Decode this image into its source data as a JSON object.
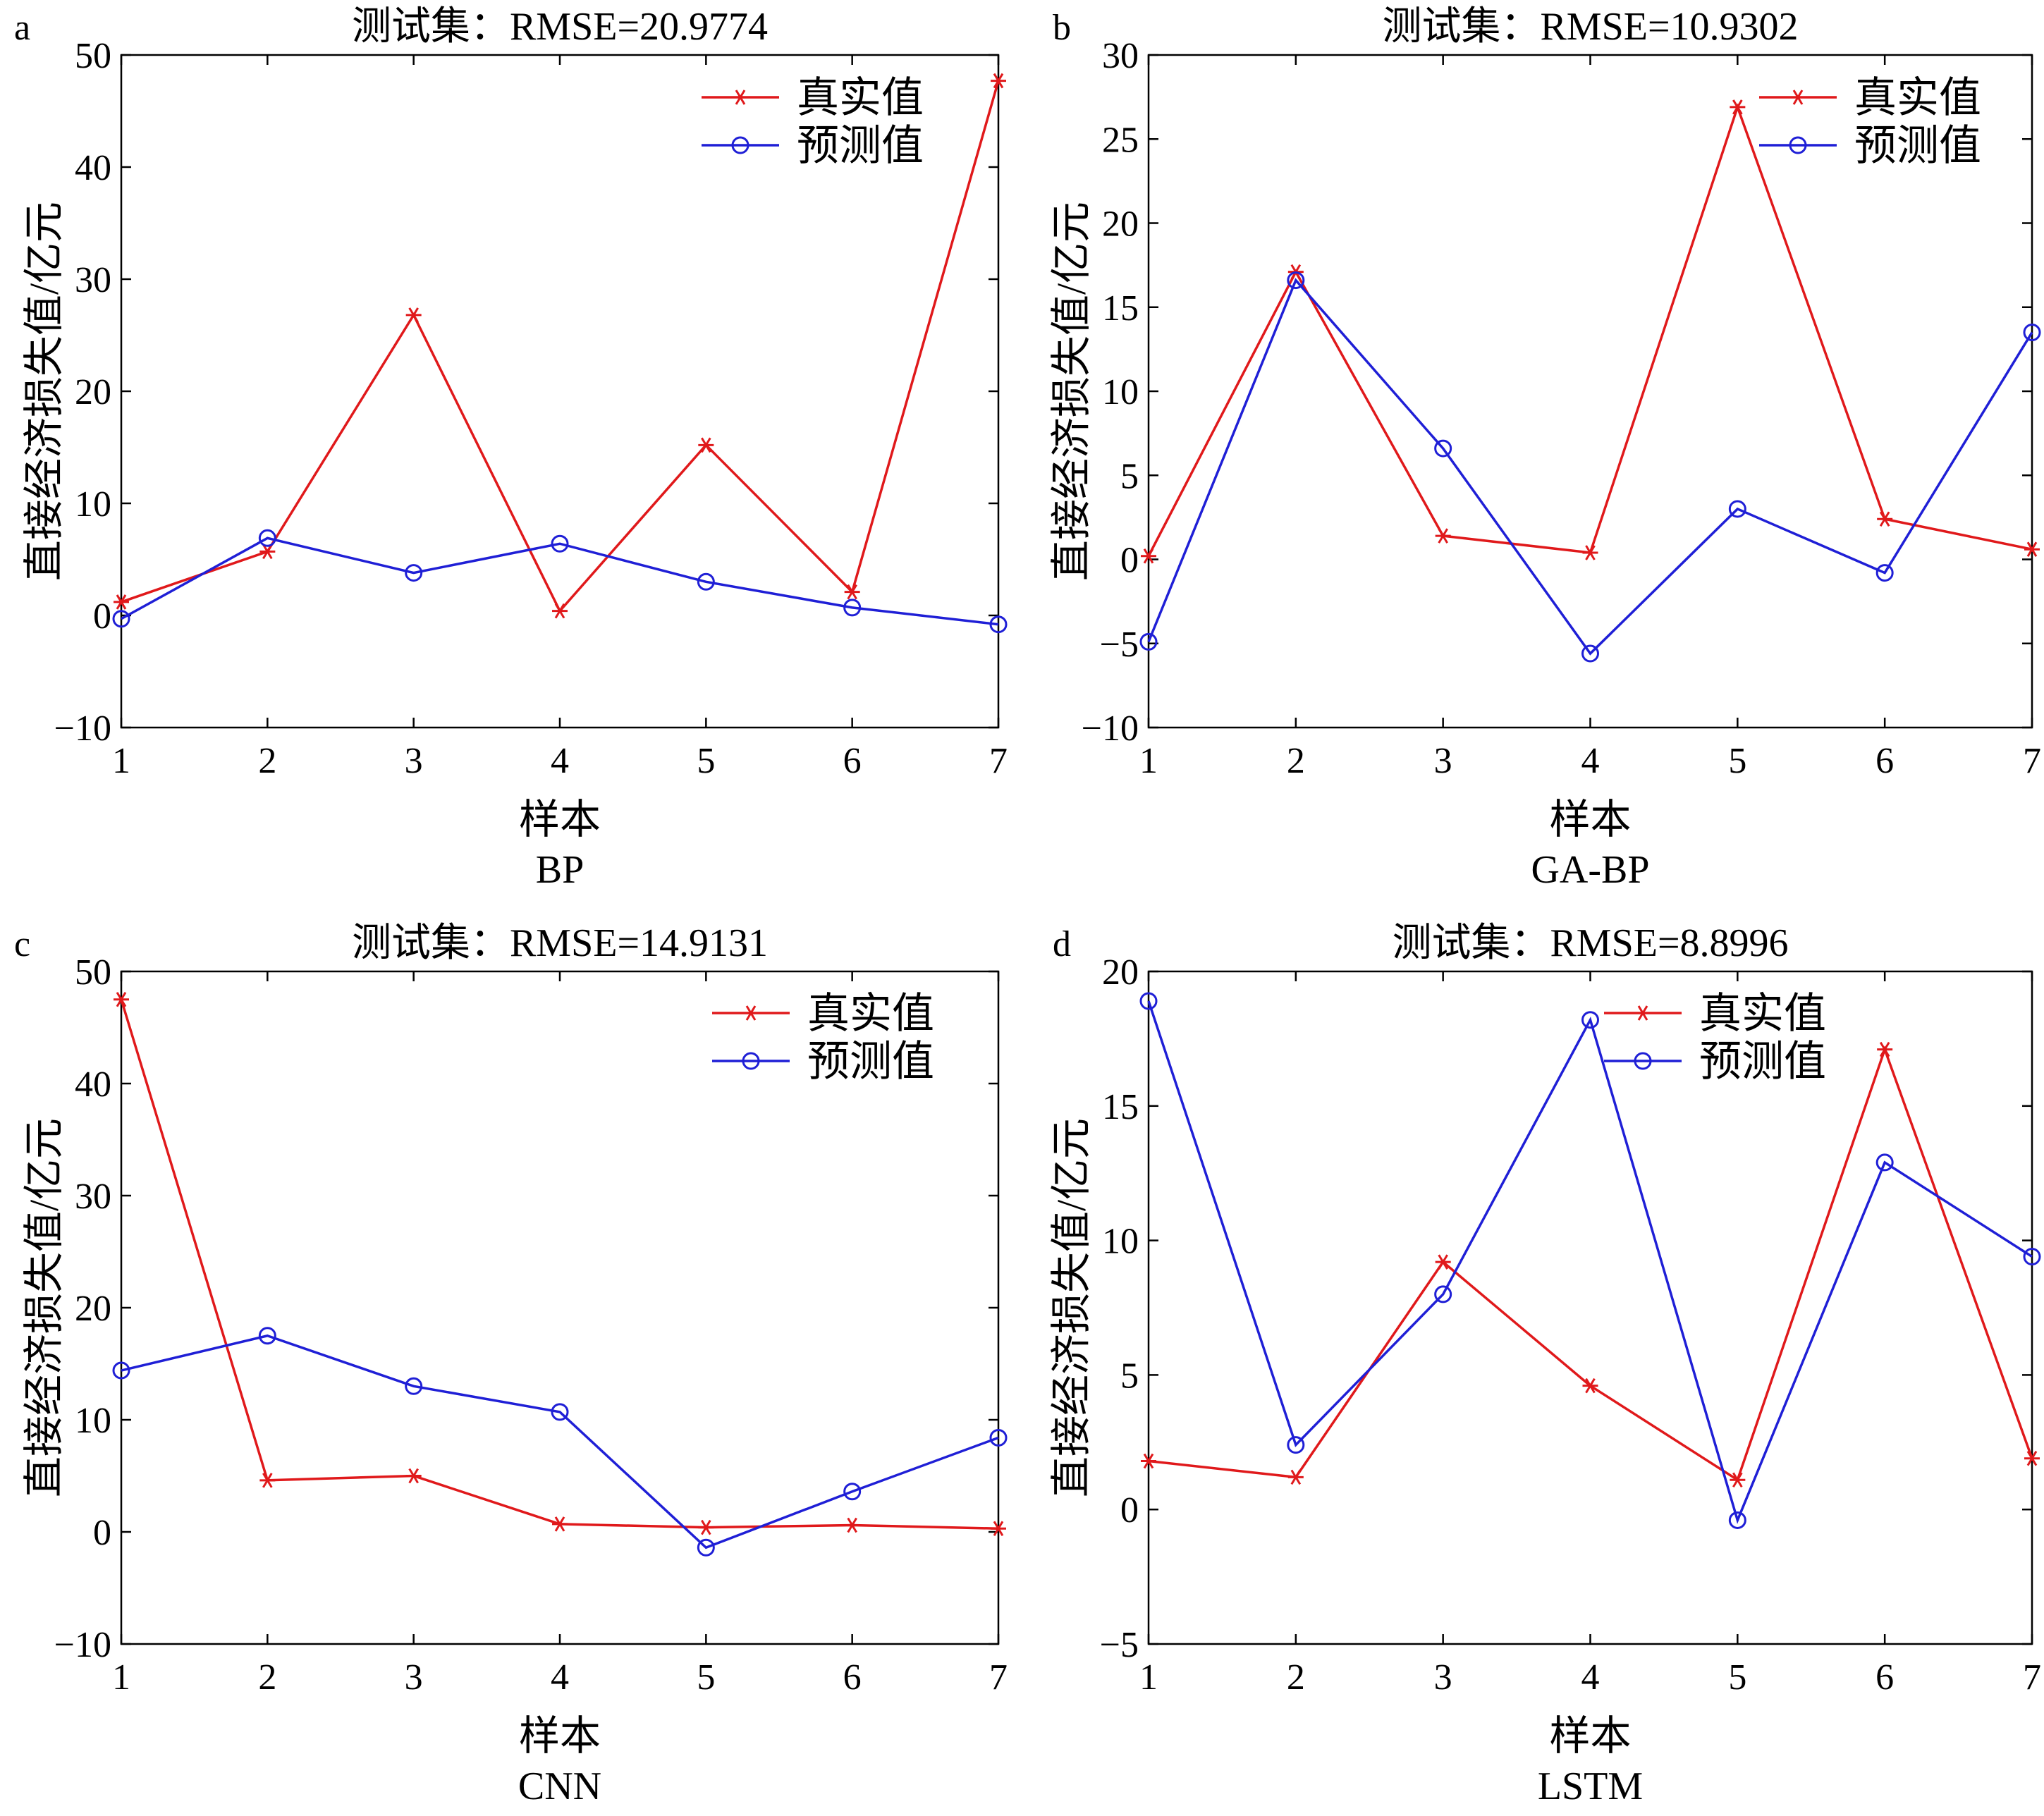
{
  "chart_data": [
    {
      "type": "line",
      "panel_label": "a",
      "title": "测试集：RMSE=20.9774",
      "xlabel": "样本",
      "ylabel": "直接经济损失值/亿元",
      "caption": "BP",
      "xlim": [
        1,
        7
      ],
      "ylim": [
        -10,
        50
      ],
      "x": [
        1,
        2,
        3,
        4,
        5,
        6,
        7
      ],
      "xticks": [
        "1",
        "2",
        "3",
        "4",
        "5",
        "6",
        "7"
      ],
      "yticks": [
        "−10",
        "0",
        "10",
        "20",
        "30",
        "40",
        "50"
      ],
      "legend_position": "top-right",
      "series": [
        {
          "name": "真实值",
          "marker": "asterisk",
          "color": "#e0191b",
          "values": [
            1.2,
            5.7,
            26.8,
            0.4,
            15.2,
            2.1,
            47.7
          ]
        },
        {
          "name": "预测值",
          "marker": "circle",
          "color": "#1f1fd6",
          "values": [
            -0.3,
            6.9,
            3.8,
            6.4,
            3.0,
            0.7,
            -0.8
          ]
        }
      ]
    },
    {
      "type": "line",
      "panel_label": "b",
      "title": "测试集：RMSE=10.9302",
      "xlabel": "样本",
      "ylabel": "直接经济损失值/亿元",
      "caption": "GA-BP",
      "xlim": [
        1,
        7
      ],
      "ylim": [
        -10,
        30
      ],
      "x": [
        1,
        2,
        3,
        4,
        5,
        6,
        7
      ],
      "xticks": [
        "1",
        "2",
        "3",
        "4",
        "5",
        "6",
        "7"
      ],
      "yticks": [
        "−10",
        "−5",
        "0",
        "5",
        "10",
        "15",
        "20",
        "25",
        "30"
      ],
      "legend_position": "top-right",
      "series": [
        {
          "name": "真实值",
          "marker": "asterisk",
          "color": "#e0191b",
          "values": [
            0.2,
            17.1,
            1.4,
            0.4,
            26.9,
            2.4,
            0.6
          ]
        },
        {
          "name": "预测值",
          "marker": "circle",
          "color": "#1f1fd6",
          "values": [
            -4.9,
            16.6,
            6.6,
            -5.6,
            3.0,
            -0.8,
            13.5
          ]
        }
      ]
    },
    {
      "type": "line",
      "panel_label": "c",
      "title": "测试集：RMSE=14.9131",
      "xlabel": "样本",
      "ylabel": "直接经济损失值/亿元",
      "caption": "CNN",
      "xlim": [
        1,
        7
      ],
      "ylim": [
        -10,
        50
      ],
      "x": [
        1,
        2,
        3,
        4,
        5,
        6,
        7
      ],
      "xticks": [
        "1",
        "2",
        "3",
        "4",
        "5",
        "6",
        "7"
      ],
      "yticks": [
        "−10",
        "0",
        "10",
        "20",
        "30",
        "40",
        "50"
      ],
      "legend_position": "top-right",
      "series": [
        {
          "name": "真实值",
          "marker": "asterisk",
          "color": "#e0191b",
          "values": [
            47.5,
            4.6,
            5.0,
            0.7,
            0.4,
            0.6,
            0.3
          ]
        },
        {
          "name": "预测值",
          "marker": "circle",
          "color": "#1f1fd6",
          "values": [
            14.4,
            17.5,
            13.0,
            10.7,
            -1.4,
            3.6,
            8.4
          ]
        }
      ]
    },
    {
      "type": "line",
      "panel_label": "d",
      "title": "测试集：RMSE=8.8996",
      "xlabel": "样本",
      "ylabel": "直接经济损失值/亿元",
      "caption": "LSTM",
      "xlim": [
        1,
        7
      ],
      "ylim": [
        -5,
        20
      ],
      "x": [
        1,
        2,
        3,
        4,
        5,
        6,
        7
      ],
      "xticks": [
        "1",
        "2",
        "3",
        "4",
        "5",
        "6",
        "7"
      ],
      "yticks": [
        "−5",
        "0",
        "5",
        "10",
        "15",
        "20"
      ],
      "legend_position": "top-center",
      "series": [
        {
          "name": "真实值",
          "marker": "asterisk",
          "color": "#e0191b",
          "values": [
            1.8,
            1.2,
            9.2,
            4.6,
            1.1,
            17.1,
            1.9
          ]
        },
        {
          "name": "预测值",
          "marker": "circle",
          "color": "#1f1fd6",
          "values": [
            18.9,
            2.4,
            8.0,
            18.2,
            -0.4,
            12.9,
            9.4
          ]
        }
      ]
    }
  ]
}
